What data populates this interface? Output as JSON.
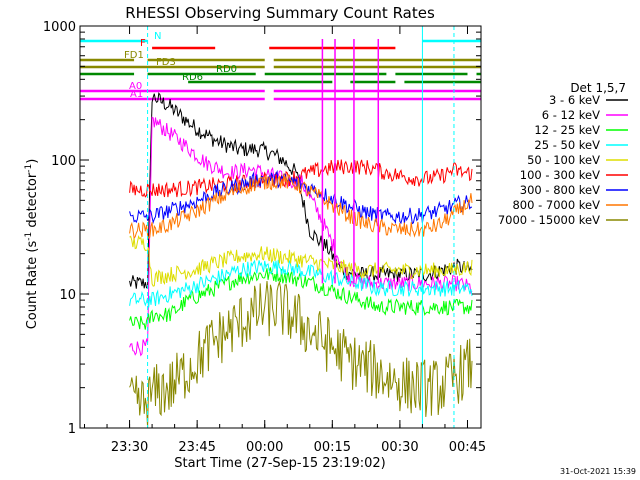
{
  "chart_data": {
    "type": "line",
    "title": "RHESSI Observing Summary Count Rates",
    "xlabel": "Start Time (27-Sep-15 23:19:02)",
    "ylabel_main": "Count Rate (s",
    "ylabel_sup1": "-1",
    "ylabel_mid": " detector",
    "ylabel_sup2": "-1",
    "ylabel_end": ")",
    "yscale": "log",
    "ylim": [
      1,
      1000
    ],
    "xlim_minutes": [
      0,
      89
    ],
    "x_ticks": [
      {
        "m": 11,
        "label": "23:30"
      },
      {
        "m": 26,
        "label": "23:45"
      },
      {
        "m": 41,
        "label": "00:00"
      },
      {
        "m": 56,
        "label": "00:15"
      },
      {
        "m": 71,
        "label": "00:30"
      },
      {
        "m": 86,
        "label": "00:45"
      }
    ],
    "y_ticks": [
      {
        "v": 1,
        "label": "1"
      },
      {
        "v": 10,
        "label": "10"
      },
      {
        "v": 100,
        "label": "100"
      },
      {
        "v": 1000,
        "label": "1000"
      }
    ],
    "legend_title": "Det 1,5,7",
    "legend_position": "right",
    "series": [
      {
        "name": "3 - 6 keV",
        "color": "#000000",
        "anchors": [
          [
            11,
            12
          ],
          [
            15,
            12
          ],
          [
            16,
            300
          ],
          [
            20,
            250
          ],
          [
            25,
            180
          ],
          [
            30,
            140
          ],
          [
            35,
            120
          ],
          [
            40,
            120
          ],
          [
            43,
            110
          ],
          [
            45,
            100
          ],
          [
            48,
            80
          ],
          [
            51,
            30
          ],
          [
            53,
            25
          ],
          [
            55,
            22
          ],
          [
            58,
            15
          ],
          [
            62,
            14
          ],
          [
            66,
            14
          ],
          [
            70,
            14
          ],
          [
            74,
            14
          ],
          [
            77,
            14
          ],
          [
            80,
            15
          ],
          [
            84,
            16
          ],
          [
            87,
            15
          ]
        ]
      },
      {
        "name": "6 - 12 keV",
        "color": "#ff00ff",
        "anchors": [
          [
            11,
            4
          ],
          [
            15,
            4
          ],
          [
            16,
            200
          ],
          [
            22,
            140
          ],
          [
            28,
            95
          ],
          [
            33,
            80
          ],
          [
            38,
            85
          ],
          [
            42,
            78
          ],
          [
            46,
            70
          ],
          [
            49,
            70
          ],
          [
            53,
            40
          ],
          [
            57,
            20
          ],
          [
            60,
            13
          ],
          [
            64,
            12
          ],
          [
            68,
            12
          ],
          [
            72,
            12
          ],
          [
            76,
            12
          ],
          [
            80,
            12
          ],
          [
            84,
            12
          ],
          [
            87,
            11
          ]
        ]
      },
      {
        "name": "12 - 25 keV",
        "color": "#00ff00",
        "anchors": [
          [
            11,
            6
          ],
          [
            15,
            6
          ],
          [
            16,
            7
          ],
          [
            20,
            7
          ],
          [
            24,
            9
          ],
          [
            30,
            11
          ],
          [
            35,
            13
          ],
          [
            40,
            14
          ],
          [
            44,
            14
          ],
          [
            48,
            13
          ],
          [
            52,
            12
          ],
          [
            55,
            11
          ],
          [
            58,
            10
          ],
          [
            62,
            9
          ],
          [
            66,
            8
          ],
          [
            70,
            8
          ],
          [
            74,
            8
          ],
          [
            78,
            8
          ],
          [
            82,
            8
          ],
          [
            87,
            8
          ]
        ]
      },
      {
        "name": "25 - 50 keV",
        "color": "#00ffff",
        "anchors": [
          [
            11,
            9
          ],
          [
            15,
            9
          ],
          [
            16,
            9
          ],
          [
            20,
            10
          ],
          [
            24,
            11
          ],
          [
            30,
            13
          ],
          [
            35,
            15
          ],
          [
            40,
            16
          ],
          [
            45,
            16
          ],
          [
            49,
            15
          ],
          [
            53,
            14
          ],
          [
            57,
            13
          ],
          [
            62,
            12
          ],
          [
            66,
            11
          ],
          [
            70,
            11
          ],
          [
            74,
            11
          ],
          [
            78,
            11
          ],
          [
            82,
            11
          ],
          [
            87,
            11
          ]
        ]
      },
      {
        "name": "50 - 100 keV",
        "color": "#dddd00",
        "anchors": [
          [
            11,
            24
          ],
          [
            15,
            24
          ],
          [
            16,
            13
          ],
          [
            20,
            14
          ],
          [
            25,
            15
          ],
          [
            30,
            17
          ],
          [
            35,
            19
          ],
          [
            40,
            20
          ],
          [
            45,
            19
          ],
          [
            49,
            18
          ],
          [
            53,
            17
          ],
          [
            57,
            16
          ],
          [
            62,
            15
          ],
          [
            66,
            15
          ],
          [
            70,
            15
          ],
          [
            74,
            15
          ],
          [
            78,
            15
          ],
          [
            82,
            15
          ],
          [
            87,
            16
          ]
        ]
      },
      {
        "name": "100 - 300 keV",
        "color": "#ff0000",
        "anchors": [
          [
            11,
            60
          ],
          [
            15,
            60
          ],
          [
            16,
            60
          ],
          [
            20,
            60
          ],
          [
            25,
            62
          ],
          [
            30,
            65
          ],
          [
            35,
            67
          ],
          [
            40,
            70
          ],
          [
            45,
            72
          ],
          [
            48,
            75
          ],
          [
            52,
            82
          ],
          [
            56,
            88
          ],
          [
            60,
            90
          ],
          [
            64,
            88
          ],
          [
            68,
            80
          ],
          [
            72,
            75
          ],
          [
            76,
            72
          ],
          [
            80,
            75
          ],
          [
            83,
            85
          ],
          [
            85,
            80
          ],
          [
            87,
            80
          ]
        ]
      },
      {
        "name": "300 - 800 keV",
        "color": "#0000ff",
        "anchors": [
          [
            11,
            38
          ],
          [
            15,
            38
          ],
          [
            16,
            38
          ],
          [
            20,
            42
          ],
          [
            25,
            48
          ],
          [
            30,
            57
          ],
          [
            35,
            64
          ],
          [
            40,
            72
          ],
          [
            44,
            72
          ],
          [
            48,
            68
          ],
          [
            52,
            60
          ],
          [
            56,
            52
          ],
          [
            60,
            45
          ],
          [
            64,
            40
          ],
          [
            68,
            38
          ],
          [
            72,
            38
          ],
          [
            76,
            39
          ],
          [
            80,
            42
          ],
          [
            84,
            47
          ],
          [
            87,
            48
          ]
        ]
      },
      {
        "name": "800 - 7000 keV",
        "color": "#ff7700",
        "anchors": [
          [
            11,
            30
          ],
          [
            15,
            30
          ],
          [
            16,
            30
          ],
          [
            20,
            33
          ],
          [
            25,
            40
          ],
          [
            30,
            50
          ],
          [
            35,
            60
          ],
          [
            40,
            68
          ],
          [
            45,
            70
          ],
          [
            48,
            66
          ],
          [
            52,
            56
          ],
          [
            56,
            46
          ],
          [
            60,
            38
          ],
          [
            64,
            33
          ],
          [
            68,
            31
          ],
          [
            72,
            30
          ],
          [
            76,
            30
          ],
          [
            80,
            33
          ],
          [
            84,
            42
          ],
          [
            87,
            50
          ]
        ]
      },
      {
        "name": "7000 - 15000 keV",
        "color": "#888800",
        "anchors": [
          [
            11,
            1.5
          ],
          [
            15,
            1.5
          ],
          [
            16,
            1.8
          ],
          [
            20,
            2
          ],
          [
            25,
            3
          ],
          [
            30,
            4.5
          ],
          [
            35,
            6
          ],
          [
            40,
            7.5
          ],
          [
            44,
            8
          ],
          [
            48,
            6.5
          ],
          [
            52,
            5
          ],
          [
            56,
            4
          ],
          [
            60,
            3.2
          ],
          [
            64,
            2.8
          ],
          [
            68,
            2.4
          ],
          [
            72,
            2.1
          ],
          [
            76,
            2
          ],
          [
            80,
            2
          ],
          [
            84,
            2.5
          ],
          [
            87,
            3
          ]
        ]
      }
    ],
    "spikes": [
      {
        "m": 53.8,
        "color": "#ff00ff",
        "label": ""
      },
      {
        "m": 56.6,
        "color": "#ff00ff",
        "label": ""
      },
      {
        "m": 60.8,
        "color": "#ff00ff",
        "label": ""
      },
      {
        "m": 66.2,
        "color": "#ff00ff",
        "label": ""
      }
    ],
    "flags": [
      {
        "label": "N",
        "color": "#00ffff",
        "segments": [
          [
            0,
            15
          ],
          [
            76,
            89
          ]
        ]
      },
      {
        "label": "F",
        "color": "#ff0000",
        "segments": [
          [
            16,
            30
          ],
          [
            42,
            70
          ]
        ]
      },
      {
        "label": "FD1",
        "color": "#888800",
        "segments": [
          [
            0,
            12
          ],
          [
            15,
            41
          ],
          [
            43,
            89
          ]
        ]
      },
      {
        "label": "FD3",
        "color": "#888800",
        "segments": [
          [
            0,
            41
          ],
          [
            43,
            89
          ]
        ]
      },
      {
        "label": "RD0",
        "color": "#008800",
        "segments": [
          [
            0,
            12
          ],
          [
            15,
            39
          ],
          [
            41,
            68
          ],
          [
            70,
            86
          ],
          [
            88,
            89
          ]
        ]
      },
      {
        "label": "RD6",
        "color": "#008800",
        "segments": [
          [
            24,
            56
          ],
          [
            60,
            70
          ],
          [
            72,
            89
          ]
        ]
      },
      {
        "label": "A0",
        "color": "#ff00ff",
        "segments": [
          [
            0,
            41
          ],
          [
            43,
            89
          ]
        ]
      },
      {
        "label": "A1",
        "color": "#ff00ff",
        "segments": [
          [
            0,
            41
          ],
          [
            43,
            89
          ]
        ]
      }
    ],
    "vlines": [
      {
        "m": 15,
        "color": "#00ffff",
        "dashed": true
      },
      {
        "m": 76,
        "color": "#00ffff",
        "dashed": false
      },
      {
        "m": 83,
        "color": "#00ffff",
        "dashed": true
      }
    ]
  },
  "footer": {
    "date_stamp": "31-Oct-2021 15:39"
  }
}
